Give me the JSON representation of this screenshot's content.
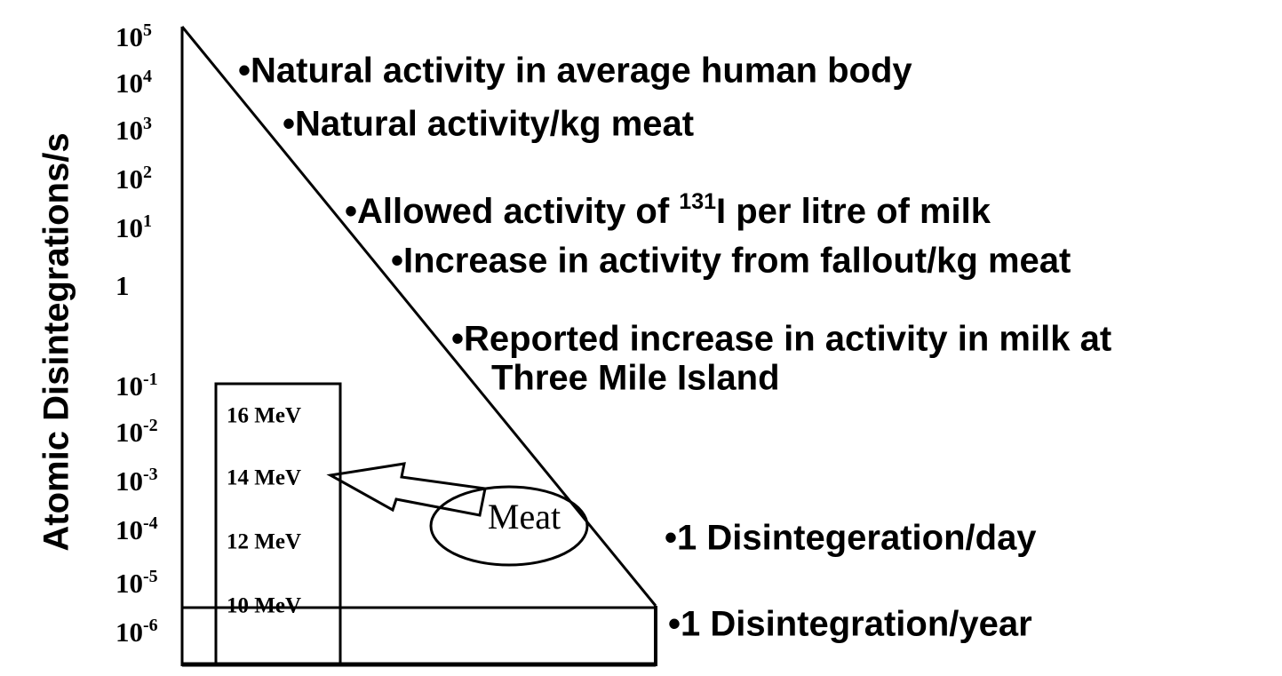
{
  "y_axis_label": "Atomic Disintegrations/s",
  "ticks": [
    {
      "base": "10",
      "exponent": "5"
    },
    {
      "base": "10",
      "exponent": "4"
    },
    {
      "base": "10",
      "exponent": "3"
    },
    {
      "base": "10",
      "exponent": "2"
    },
    {
      "base": "10",
      "exponent": "1"
    },
    {
      "base": "1"
    },
    {
      "base": "10",
      "exponent": "-1"
    },
    {
      "base": "10",
      "exponent": "-2"
    },
    {
      "base": "10",
      "exponent": "-3"
    },
    {
      "base": "10",
      "exponent": "-4"
    },
    {
      "base": "10",
      "exponent": "-5"
    },
    {
      "base": "10",
      "exponent": "-6"
    }
  ],
  "annotations": {
    "human_body": "•Natural activity in average human body",
    "meat": "•Natural activity/kg meat",
    "milk": {
      "before": "•Allowed activity of ",
      "superscript": "131",
      "after": "I per litre of milk"
    },
    "fallout": "•Increase in activity from fallout/kg meat",
    "tmi": [
      "•Reported increase in activity in milk at",
      "Three Mile Island"
    ],
    "day": "•1 Disintegeration/day",
    "year": "•1 Disintegration/year"
  },
  "energy_labels": [
    "16 MeV",
    "14 MeV",
    "12 MeV",
    "10 MeV"
  ],
  "meat_label": "Meat"
}
